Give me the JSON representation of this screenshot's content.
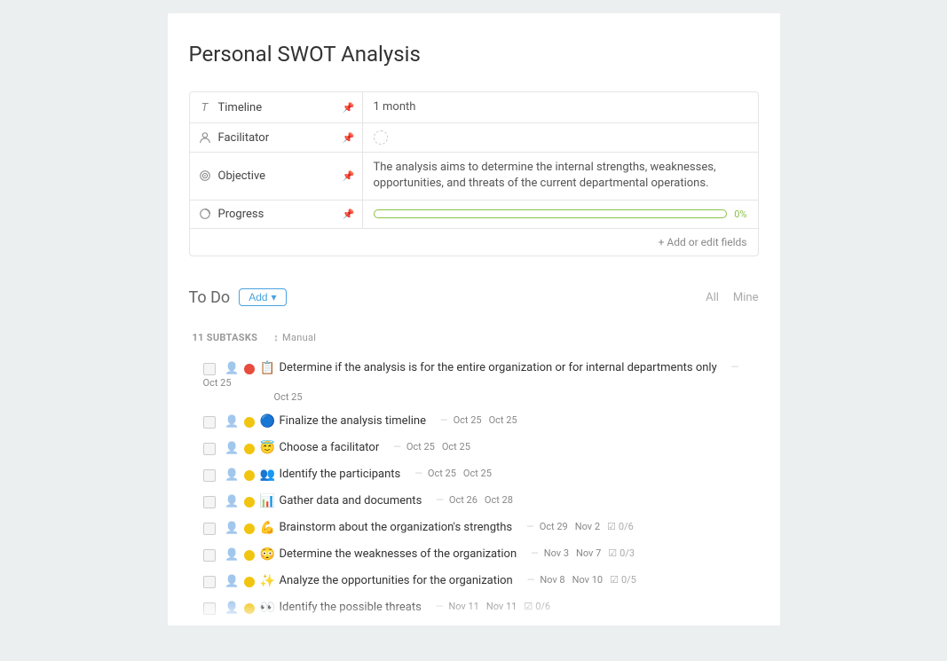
{
  "page": {
    "title": "Personal SWOT Analysis",
    "background_color": "#eceff0",
    "card_background": "#ffffff"
  },
  "fields": {
    "timeline": {
      "label": "Timeline",
      "value": "1 month"
    },
    "facilitator": {
      "label": "Facilitator",
      "value": ""
    },
    "objective": {
      "label": "Objective",
      "value": "The analysis aims to determine the internal strengths, weaknesses, opportunities, and threats of the current departmental operations."
    },
    "progress": {
      "label": "Progress",
      "percent_label": "0%",
      "bar_color": "#8bc34a"
    },
    "add_fields_label": "+ Add or edit fields"
  },
  "section": {
    "title": "To Do",
    "add_label": "Add",
    "filter_all": "All",
    "filter_mine": "Mine"
  },
  "subtasks": {
    "count_label": "11 SUBTASKS",
    "sort_label": "Manual",
    "priority_colors": {
      "high": "#e74c3c",
      "normal": "#f1c40f"
    },
    "items": [
      {
        "emoji": "📋",
        "title": "Determine if the analysis is for the entire organization or for internal departments only",
        "start": "Oct 25",
        "end": "Oct 25",
        "priority": "high",
        "wrap": true
      },
      {
        "emoji": "🔵",
        "title": "Finalize the analysis timeline",
        "start": "Oct 25",
        "end": "Oct 25",
        "priority": "normal"
      },
      {
        "emoji": "😇",
        "title": "Choose a facilitator",
        "start": "Oct 25",
        "end": "Oct 25",
        "priority": "normal"
      },
      {
        "emoji": "👥",
        "title": "Identify the participants",
        "start": "Oct 25",
        "end": "Oct 25",
        "priority": "normal"
      },
      {
        "emoji": "📊",
        "title": "Gather data and documents",
        "start": "Oct 26",
        "end": "Oct 28",
        "priority": "normal"
      },
      {
        "emoji": "💪",
        "title": "Brainstorm about the organization's strengths",
        "start": "Oct 29",
        "end": "Nov 2",
        "priority": "normal",
        "progress": "0/6"
      },
      {
        "emoji": "😳",
        "title": "Determine the weaknesses of the organization",
        "start": "Nov 3",
        "end": "Nov 7",
        "priority": "normal",
        "progress": "0/3"
      },
      {
        "emoji": "✨",
        "title": "Analyze the opportunities for the organization",
        "start": "Nov 8",
        "end": "Nov 10",
        "priority": "normal",
        "progress": "0/5"
      },
      {
        "emoji": "👀",
        "title": "Identify the possible threats",
        "start": "Nov 11",
        "end": "Nov 11",
        "priority": "normal",
        "progress": "0/6"
      }
    ]
  }
}
